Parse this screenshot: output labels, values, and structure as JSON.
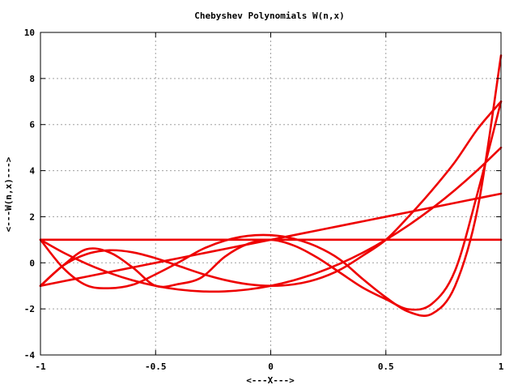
{
  "chart_data": {
    "type": "line",
    "title": "Chebyshev Polynomials W(n,x)",
    "xlabel": "<---X--->",
    "ylabel": "<---W(n,x)--->",
    "xlim": [
      -1,
      1
    ],
    "ylim": [
      -4,
      10
    ],
    "grid": true,
    "x_ticks": [
      -1,
      -0.5,
      0,
      0.5,
      1
    ],
    "x_tick_labels": [
      "-1",
      "-0.5",
      "0",
      "0.5",
      "1"
    ],
    "y_ticks": [
      -4,
      -2,
      0,
      2,
      4,
      6,
      8,
      10
    ],
    "y_tick_labels": [
      "-4",
      "-2",
      "0",
      "2",
      "4",
      "6",
      "8",
      "10"
    ],
    "series_color": "#ee0000",
    "x": [
      -1,
      -0.9,
      -0.8,
      -0.7,
      -0.6,
      -0.5,
      -0.4,
      -0.3,
      -0.2,
      -0.1,
      0,
      0.1,
      0.2,
      0.3,
      0.4,
      0.5,
      0.6,
      0.7,
      0.8,
      0.9,
      1
    ],
    "series": [
      {
        "values": [
          1,
          1,
          1,
          1,
          1,
          1,
          1,
          1,
          1,
          1,
          1,
          1,
          1,
          1,
          1,
          1,
          1,
          1,
          1,
          1,
          1
        ]
      },
      {
        "values": [
          -1,
          -0.8,
          -0.6,
          -0.4,
          -0.2,
          0,
          0.2,
          0.4,
          0.6,
          0.8,
          1,
          1.2,
          1.4,
          1.6,
          1.8,
          2,
          2.2,
          2.4,
          2.6,
          2.8,
          3
        ]
      },
      {
        "values": [
          1,
          0.44,
          -0.04,
          -0.44,
          -0.76,
          -1,
          -1.16,
          -1.24,
          -1.24,
          -1.16,
          -1,
          -0.76,
          -0.44,
          -0.04,
          0.44,
          1,
          1.64,
          2.36,
          3.16,
          4.04,
          5
        ]
      },
      {
        "values": [
          -1,
          -0.112,
          0.376,
          0.544,
          0.456,
          0.2,
          -0.136,
          -0.472,
          -0.744,
          -0.928,
          -1,
          -0.936,
          -0.712,
          -0.304,
          0.312,
          1,
          2.024,
          3.144,
          4.376,
          5.832,
          7
        ]
      },
      {
        "values": [
          1,
          -0.2384,
          -0.9776,
          -1.1024,
          -0.9536,
          -0.5,
          0.0176,
          0.5776,
          0.9616,
          1.1696,
          1.2,
          1.0496,
          0.7056,
          0.1456,
          -0.7084,
          -1.5,
          -2.1296,
          -2.2144,
          -1.0176,
          2.4296,
          9
        ]
      },
      {
        "values": [
          -1,
          -0.1,
          0.59,
          0.45,
          -0.2,
          -1,
          -0.92,
          -0.63,
          0.26,
          0.82,
          1,
          0.75,
          0.24,
          -0.42,
          -1.08,
          -1.58,
          -2.02,
          -1.78,
          -0.35,
          3.1,
          7
        ]
      }
    ]
  }
}
